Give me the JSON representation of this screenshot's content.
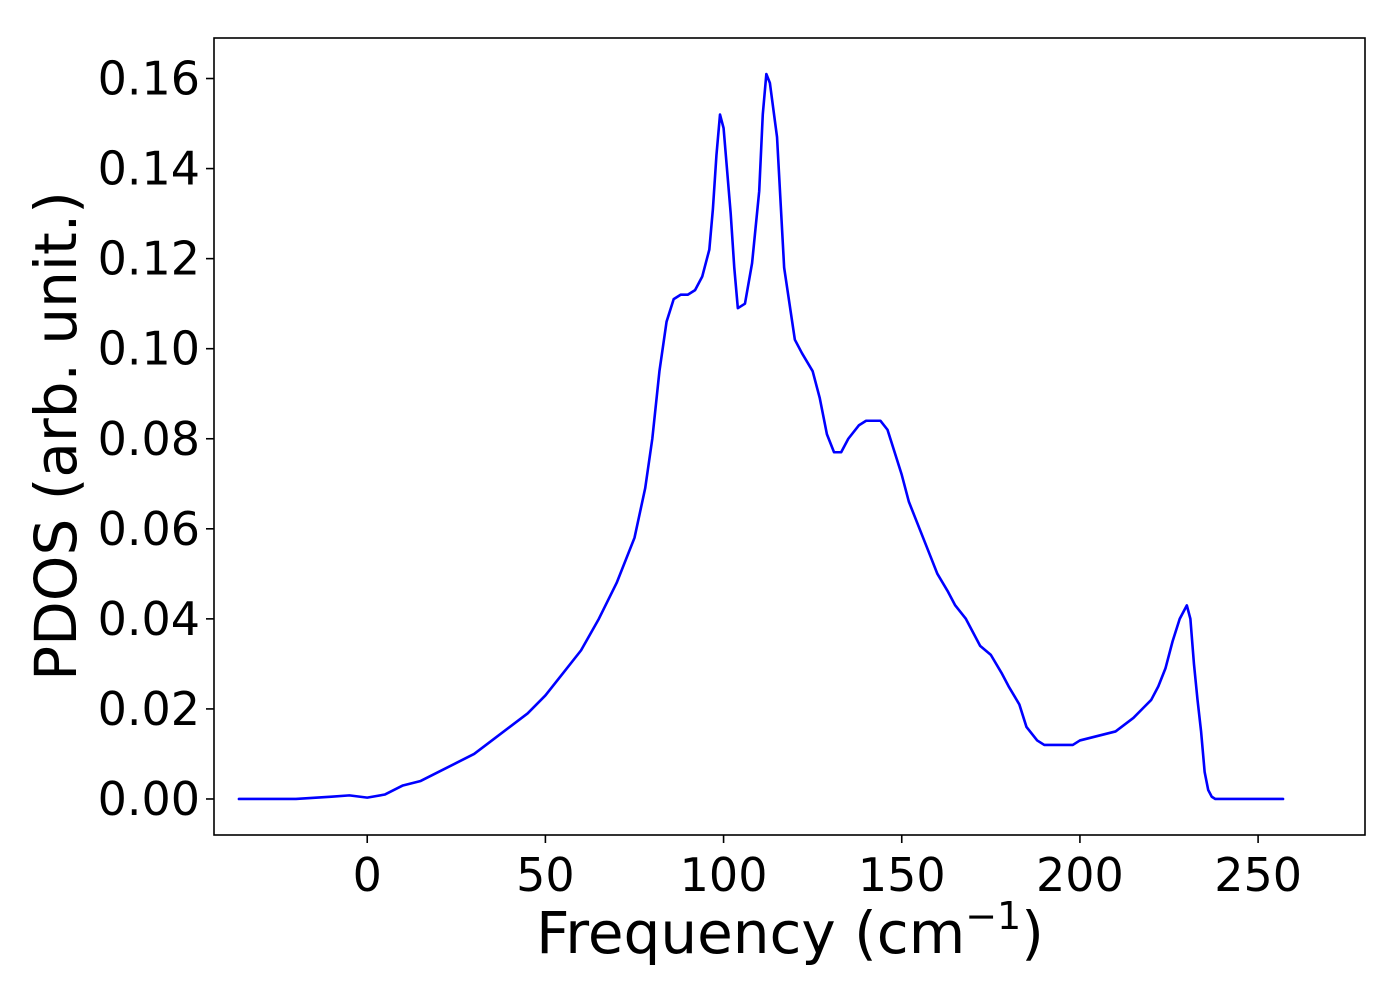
{
  "chart_data": {
    "type": "line",
    "title": "",
    "xlabel": "Frequency (cm",
    "xlabel_superscript": "−1",
    "xlabel_suffix": ")",
    "ylabel": "PDOS (arb. unit.)",
    "xlim": [
      -43,
      280
    ],
    "ylim": [
      -0.008,
      0.169
    ],
    "xticks": [
      0,
      50,
      100,
      150,
      200,
      250
    ],
    "xtick_labels": [
      "0",
      "50",
      "100",
      "150",
      "200",
      "250"
    ],
    "yticks": [
      0.0,
      0.02,
      0.04,
      0.06,
      0.08,
      0.1,
      0.12,
      0.14,
      0.16
    ],
    "ytick_labels": [
      "0.00",
      "0.02",
      "0.04",
      "0.06",
      "0.08",
      "0.10",
      "0.12",
      "0.14",
      "0.16"
    ],
    "grid": false,
    "series": [
      {
        "color": "#0000ff",
        "x": [
          -36,
          -20,
          -10,
          -5,
          0,
          5,
          10,
          15,
          20,
          25,
          30,
          35,
          40,
          45,
          50,
          55,
          60,
          65,
          70,
          75,
          78,
          80,
          82,
          84,
          86,
          88,
          90,
          92,
          94,
          96,
          97,
          98,
          99,
          100,
          102,
          103,
          104,
          106,
          108,
          110,
          111,
          112,
          113,
          115,
          117,
          120,
          122,
          125,
          127,
          129,
          131,
          133,
          135,
          138,
          140,
          142,
          144,
          146,
          150,
          152,
          155,
          158,
          160,
          163,
          165,
          168,
          170,
          172,
          175,
          178,
          180,
          183,
          185,
          188,
          190,
          192,
          195,
          198,
          200,
          205,
          210,
          215,
          220,
          222,
          224,
          226,
          228,
          230,
          231,
          232,
          233,
          234,
          235,
          236,
          237,
          238,
          240,
          245,
          250,
          257
        ],
        "y": [
          0.0,
          0.0,
          0.0005,
          0.0008,
          0.0003,
          0.001,
          0.003,
          0.004,
          0.006,
          0.008,
          0.01,
          0.013,
          0.016,
          0.019,
          0.023,
          0.028,
          0.033,
          0.04,
          0.048,
          0.058,
          0.069,
          0.08,
          0.095,
          0.106,
          0.111,
          0.112,
          0.112,
          0.113,
          0.116,
          0.122,
          0.131,
          0.143,
          0.152,
          0.149,
          0.13,
          0.118,
          0.109,
          0.11,
          0.119,
          0.135,
          0.152,
          0.161,
          0.159,
          0.147,
          0.118,
          0.102,
          0.099,
          0.095,
          0.089,
          0.081,
          0.077,
          0.077,
          0.08,
          0.083,
          0.084,
          0.084,
          0.084,
          0.082,
          0.072,
          0.066,
          0.06,
          0.054,
          0.05,
          0.046,
          0.043,
          0.04,
          0.037,
          0.034,
          0.032,
          0.028,
          0.025,
          0.021,
          0.016,
          0.013,
          0.012,
          0.012,
          0.012,
          0.012,
          0.013,
          0.014,
          0.015,
          0.018,
          0.022,
          0.025,
          0.029,
          0.035,
          0.04,
          0.043,
          0.04,
          0.03,
          0.022,
          0.015,
          0.006,
          0.002,
          0.0005,
          0.0,
          0.0,
          0.0,
          0.0,
          0.0
        ]
      }
    ]
  }
}
